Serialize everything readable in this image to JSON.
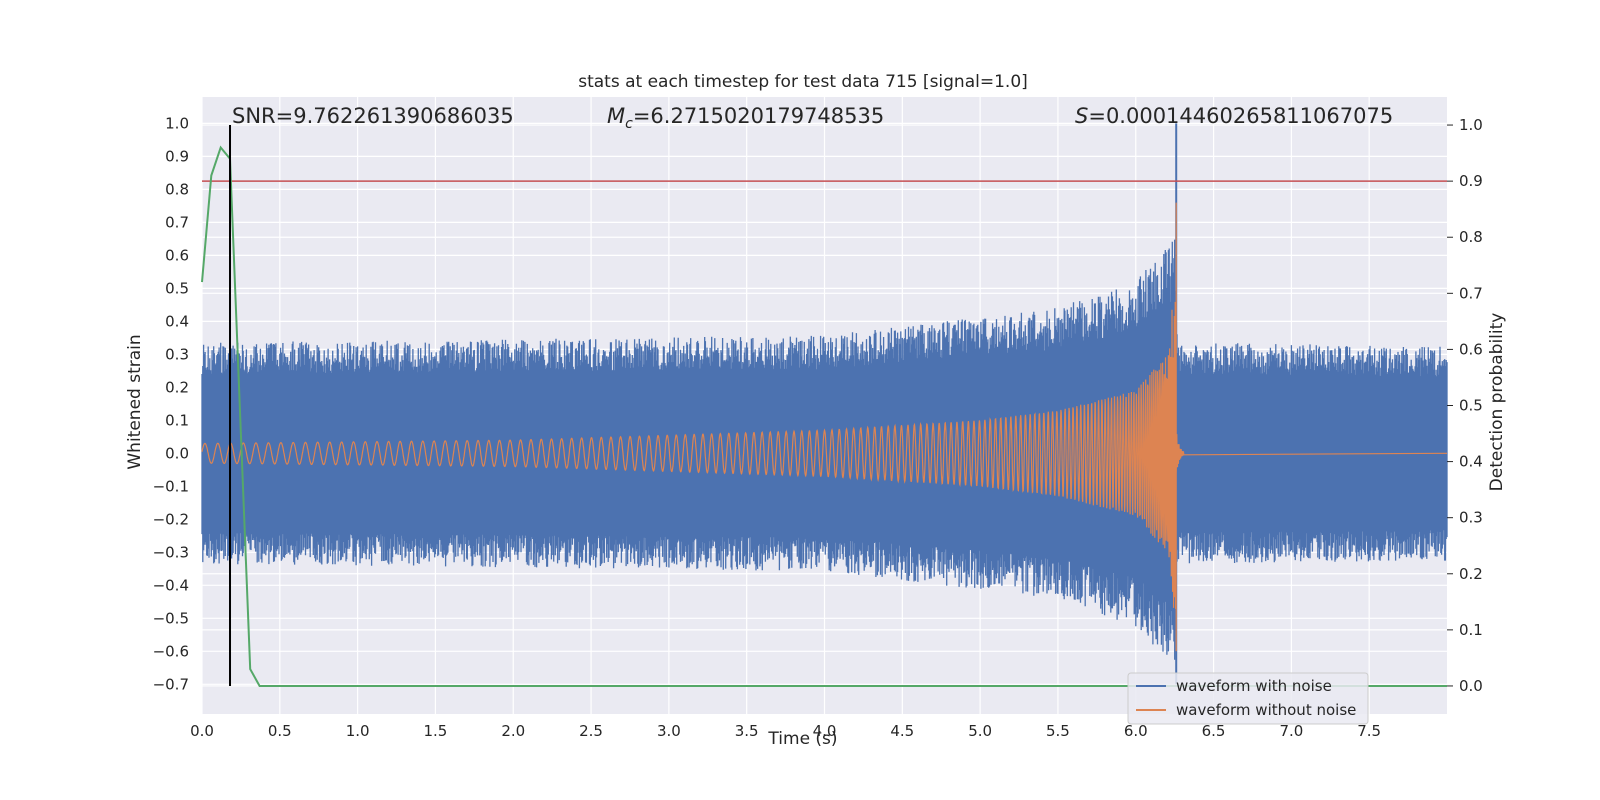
{
  "chart_data": {
    "type": "line",
    "title": "stats at each timestep for test data 715 [signal=1.0]",
    "xlabel": "Time (s)",
    "ylabel": "Whitened strain",
    "y2label": "Detection probability",
    "xlim": [
      0.0,
      8.0
    ],
    "ylim": [
      -0.79,
      1.08
    ],
    "y2lim": [
      -0.05,
      1.05
    ],
    "xticks": [
      "0.0",
      "0.5",
      "1.0",
      "1.5",
      "2.0",
      "2.5",
      "3.0",
      "3.5",
      "4.0",
      "4.5",
      "5.0",
      "5.5",
      "6.0",
      "6.5",
      "7.0",
      "7.5"
    ],
    "yticks": [
      "1.0",
      "0.9",
      "0.8",
      "0.7",
      "0.6",
      "0.5",
      "0.4",
      "0.3",
      "0.2",
      "0.1",
      "0.0",
      "−0.1",
      "−0.2",
      "−0.3",
      "−0.4",
      "−0.5",
      "−0.6",
      "−0.7"
    ],
    "y2ticks": [
      "1.0",
      "0.9",
      "0.8",
      "0.7",
      "0.6",
      "0.5",
      "0.4",
      "0.3",
      "0.2",
      "0.1",
      "0.0"
    ],
    "grid": true,
    "legend_position": "lower-right",
    "annotations": {
      "snr": "SNR=9.762261390686035",
      "mc_value": "=6.2715020179748535",
      "s_value": "=0.00014460265811067075"
    },
    "series": [
      {
        "name": "waveform with noise",
        "color": "#4c72b0",
        "noise_envelope": {
          "t": [
            0.0,
            4.0,
            5.5,
            6.0,
            6.25,
            6.27,
            8.0
          ],
          "amplitude": [
            0.32,
            0.34,
            0.42,
            0.5,
            0.62,
            0.32,
            0.31
          ]
        },
        "peak": {
          "t": 6.26,
          "min": -0.7,
          "max": 1.0
        }
      },
      {
        "name": "waveform without noise",
        "color": "#dd8452",
        "chirp_envelope": {
          "t": [
            0.0,
            2.0,
            4.0,
            5.0,
            5.5,
            6.0,
            6.2,
            6.26
          ],
          "amplitude": [
            0.03,
            0.04,
            0.07,
            0.1,
            0.13,
            0.19,
            0.3,
            0.55
          ]
        },
        "peak": {
          "t": 6.26,
          "min": -0.6,
          "max": 0.76
        }
      },
      {
        "color": "#55a868",
        "axis": "right",
        "t": [
          0.0,
          0.06,
          0.12,
          0.18,
          0.31,
          0.37,
          8.0
        ],
        "values": [
          0.72,
          0.91,
          0.96,
          0.94,
          0.03,
          0.0,
          0.0
        ]
      }
    ],
    "threshold": {
      "value": 0.9,
      "axis": "right",
      "color": "#c44e52"
    },
    "marker_time": 0.18,
    "colors": {
      "axes_bg": "#eaeaf2",
      "grid": "#ffffff",
      "text": "#262626",
      "marker": "#000000"
    }
  }
}
